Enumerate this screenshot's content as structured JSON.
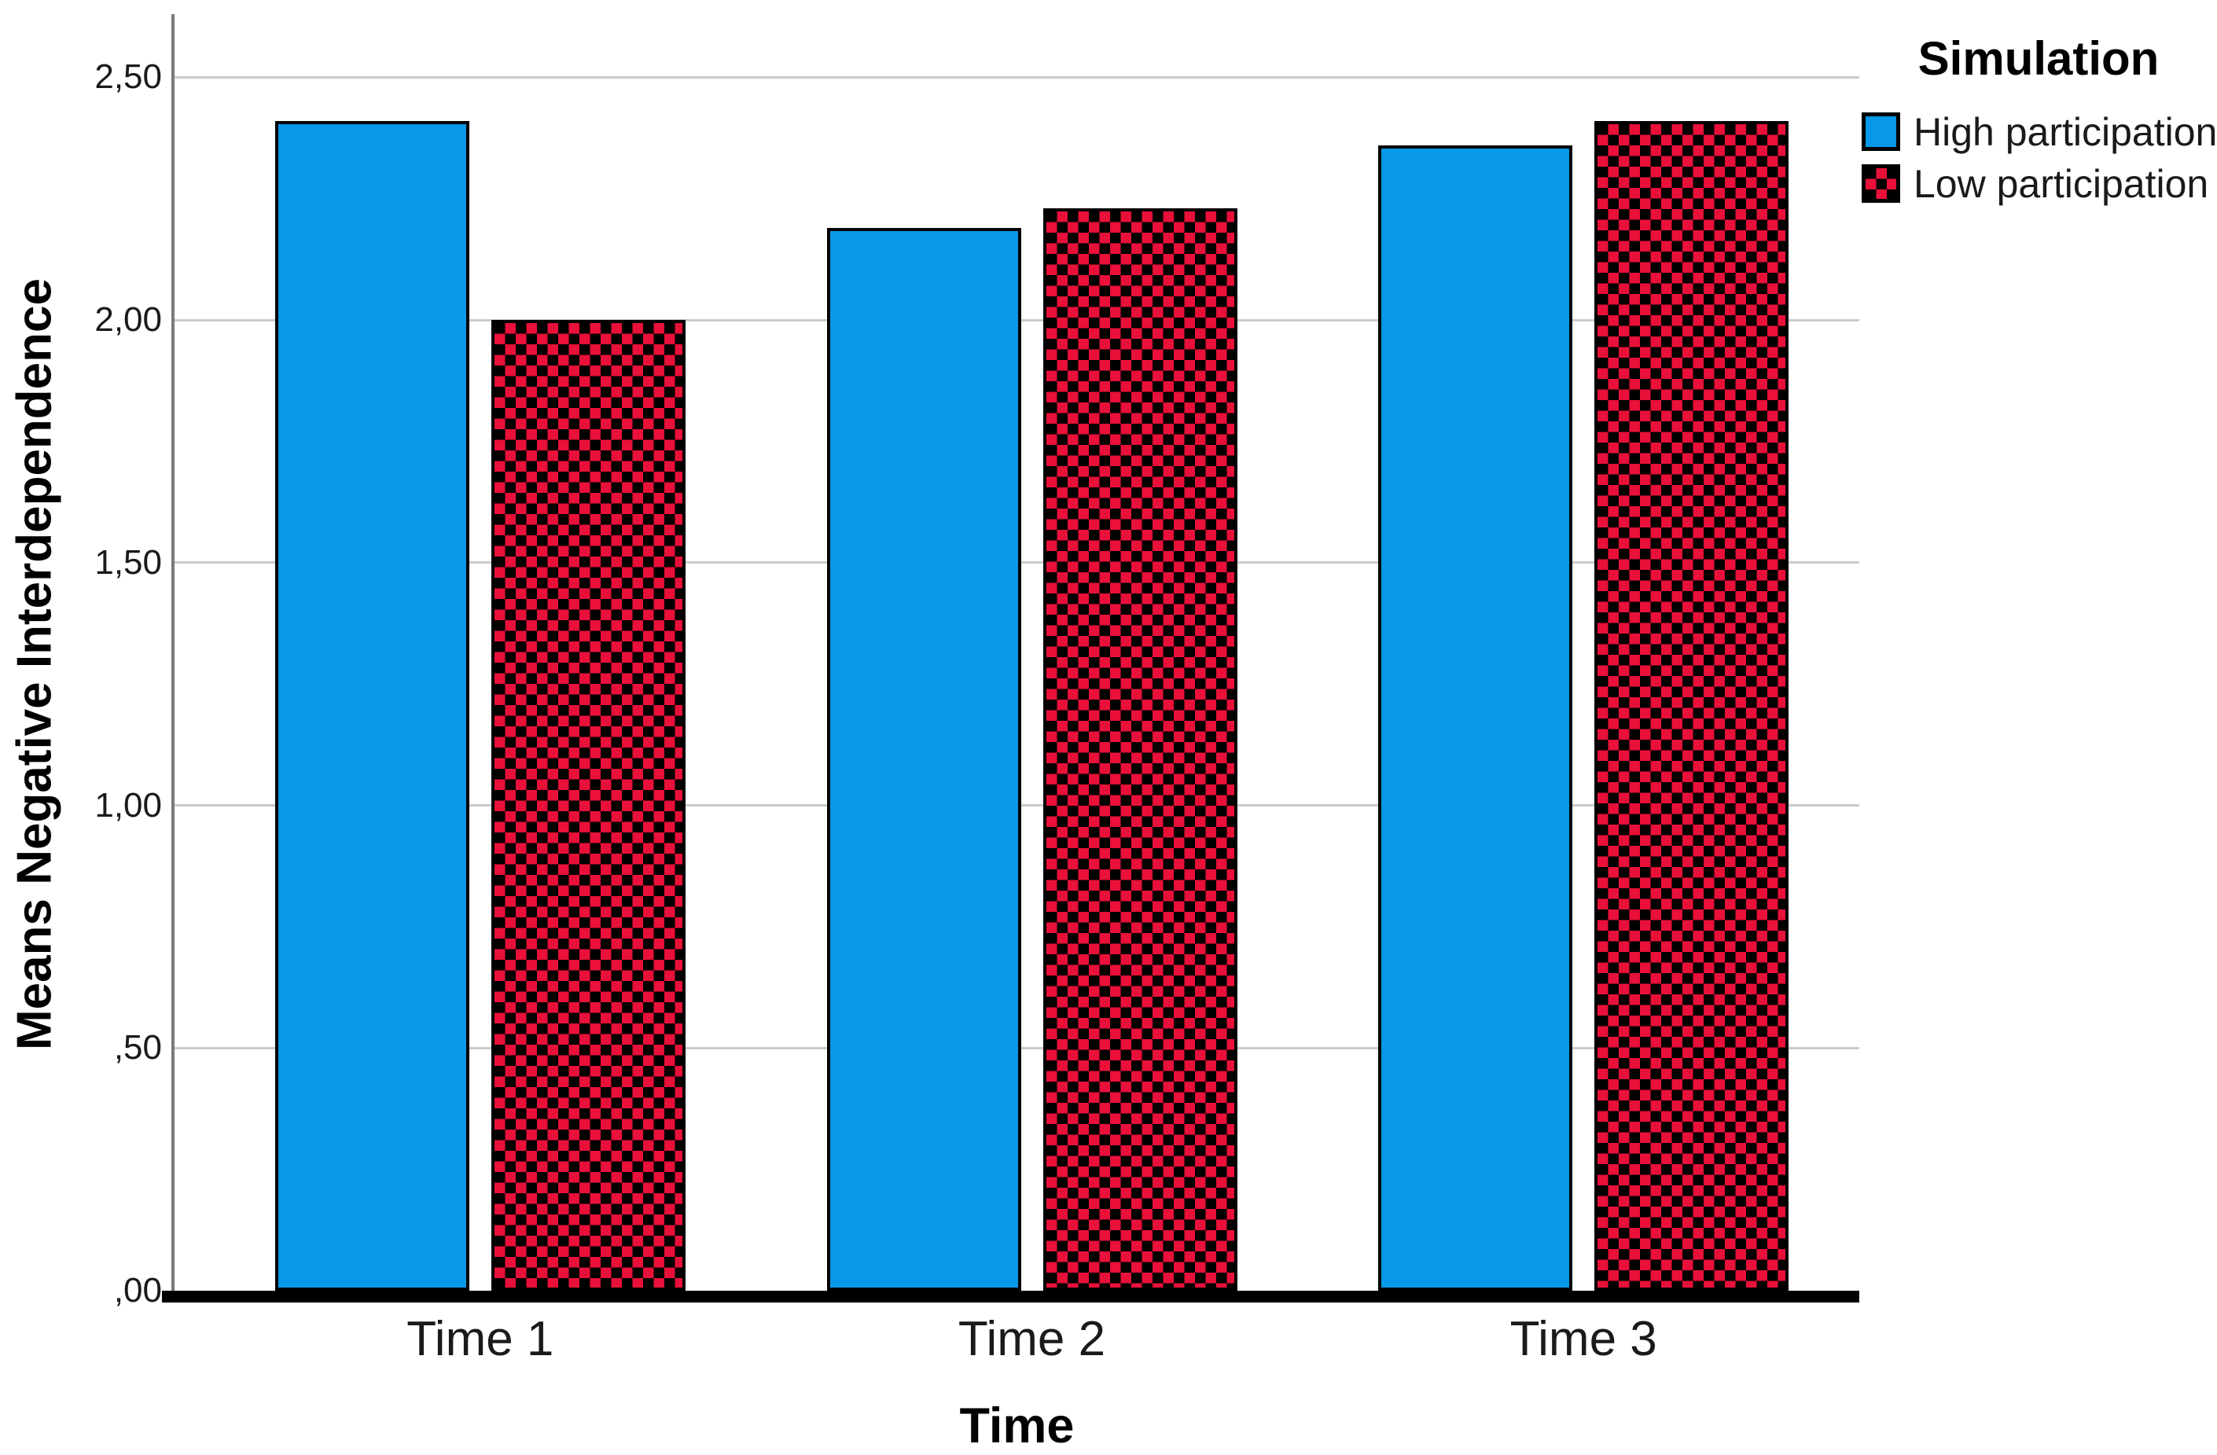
{
  "chart_data": {
    "type": "bar",
    "title": "",
    "categories": [
      "Time 1",
      "Time 2",
      "Time 3"
    ],
    "series": [
      {
        "name": "High participation",
        "style": "solid",
        "color": "#0798E8",
        "color2": "#000000",
        "values": [
          2.41,
          2.19,
          2.36
        ]
      },
      {
        "name": "Low participation",
        "style": "checker",
        "color": "#E9103A",
        "color2": "#000000",
        "values": [
          2.0,
          2.23,
          2.41
        ]
      }
    ],
    "xlabel": "Time",
    "ylabel": "Means Negative Interdependence",
    "ylim": [
      0,
      2.63
    ],
    "yticks": [
      {
        "value": 0,
        "label": ",00"
      },
      {
        "value": 0.5,
        "label": ",50"
      },
      {
        "value": 1.0,
        "label": "1,00"
      },
      {
        "value": 1.5,
        "label": "1,50"
      },
      {
        "value": 2.0,
        "label": "2,00"
      },
      {
        "value": 2.5,
        "label": "2,50"
      }
    ],
    "legend": {
      "title": "Simulation",
      "position": "top-right"
    },
    "grid": "horizontal",
    "decimal_separator": ","
  },
  "colors": {
    "gridline": "#CBCBCB",
    "y_axis_line": "#7A7A7A",
    "baseline": "#000000",
    "background": "#FFFFFF"
  }
}
